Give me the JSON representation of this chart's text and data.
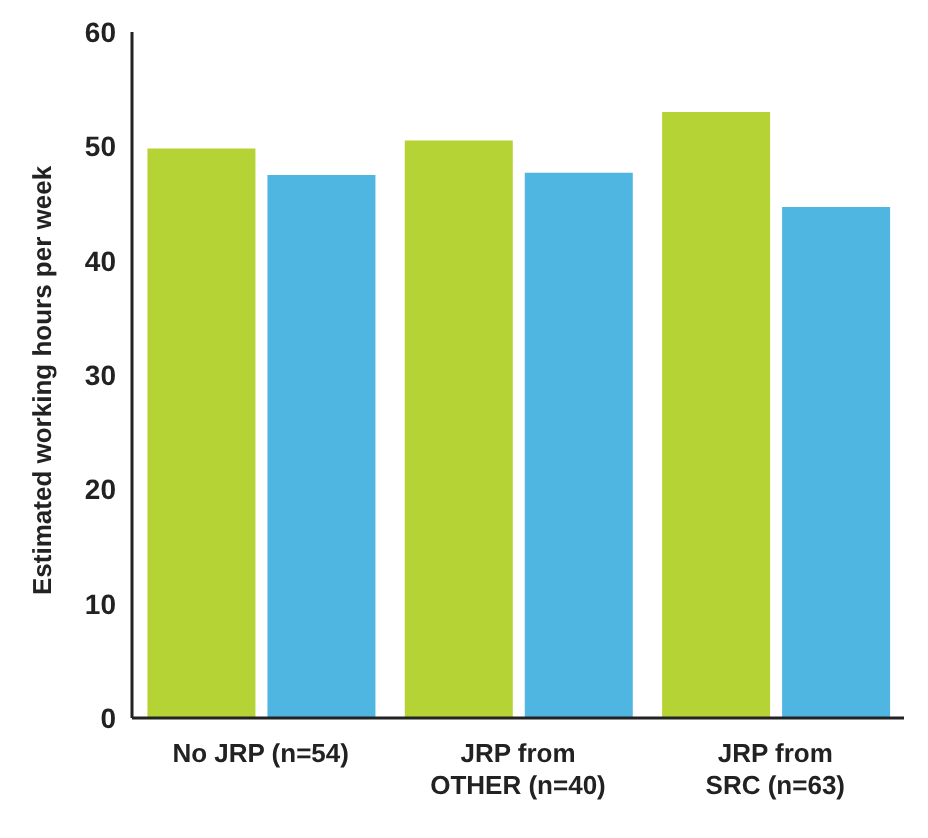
{
  "chart_data": {
    "type": "bar",
    "ylabel": "Estimated working hours per week",
    "categories": [
      "No JRP (n=54)",
      "JRP from\nOTHER (n=40)",
      "JRP from\nSRC (n=63)"
    ],
    "series": [
      {
        "color": "#b5d334",
        "values": [
          49.8,
          50.5,
          53
        ]
      },
      {
        "color": "#4fb6e1",
        "values": [
          47.5,
          47.7,
          44.7
        ]
      }
    ],
    "ylim": [
      0,
      60
    ],
    "yticks": [
      0,
      10,
      20,
      30,
      40,
      50,
      60
    ],
    "grid": false,
    "legend": false
  }
}
